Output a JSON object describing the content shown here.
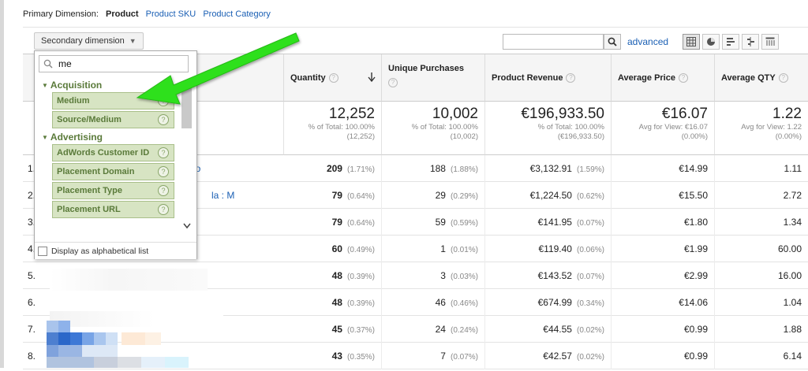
{
  "primary": {
    "label": "Primary Dimension:",
    "active": "Product",
    "links": [
      "Product SKU",
      "Product Category"
    ]
  },
  "toolbar": {
    "secondary_dimension": "Secondary dimension",
    "search_value": "",
    "advanced": "advanced",
    "view_icons": [
      "table-view-icon",
      "pie-view-icon",
      "bar-view-icon",
      "comparison-view-icon",
      "pivot-view-icon"
    ]
  },
  "columns": {
    "quantity": "Quantity",
    "unique_purchases": "Unique Purchases",
    "product_revenue": "Product Revenue",
    "average_price": "Average Price",
    "average_qty": "Average QTY",
    "help_glyph": "?"
  },
  "summary": {
    "quantity": {
      "big": "12,252",
      "l1": "% of Total: 100.00%",
      "l2": "(12,252)"
    },
    "unique_purchases": {
      "big": "10,002",
      "l1": "% of Total: 100.00%",
      "l2": "(10,002)"
    },
    "product_revenue": {
      "big": "€196,933.50",
      "l1": "% of Total: 100.00%",
      "l2": "(€196,933.50)"
    },
    "average_price": {
      "big": "€16.07",
      "l1": "Avg for View: €16.07",
      "l2": "(0.00%)"
    },
    "average_qty": {
      "big": "1.22",
      "l1": "Avg for View: 1.22",
      "l2": "(0.00%)"
    }
  },
  "rows": [
    {
      "idx": "1.",
      "product": "do",
      "qty": "209",
      "qty_pct": "(1.71%)",
      "up": "188",
      "up_pct": "(1.88%)",
      "rev": "€3,132.91",
      "rev_pct": "(1.59%)",
      "price": "€14.99",
      "avgqty": "1.11"
    },
    {
      "idx": "2.",
      "product": "la : M",
      "qty": "79",
      "qty_pct": "(0.64%)",
      "up": "29",
      "up_pct": "(0.29%)",
      "rev": "€1,224.50",
      "rev_pct": "(0.62%)",
      "price": "€15.50",
      "avgqty": "2.72"
    },
    {
      "idx": "3.",
      "product": "",
      "qty": "79",
      "qty_pct": "(0.64%)",
      "up": "59",
      "up_pct": "(0.59%)",
      "rev": "€141.95",
      "rev_pct": "(0.07%)",
      "price": "€1.80",
      "avgqty": "1.34"
    },
    {
      "idx": "4.",
      "product": "",
      "qty": "60",
      "qty_pct": "(0.49%)",
      "up": "1",
      "up_pct": "(0.01%)",
      "rev": "€119.40",
      "rev_pct": "(0.06%)",
      "price": "€1.99",
      "avgqty": "60.00"
    },
    {
      "idx": "5.",
      "product": "",
      "qty": "48",
      "qty_pct": "(0.39%)",
      "up": "3",
      "up_pct": "(0.03%)",
      "rev": "€143.52",
      "rev_pct": "(0.07%)",
      "price": "€2.99",
      "avgqty": "16.00"
    },
    {
      "idx": "6.",
      "product": "",
      "qty": "48",
      "qty_pct": "(0.39%)",
      "up": "46",
      "up_pct": "(0.46%)",
      "rev": "€674.99",
      "rev_pct": "(0.34%)",
      "price": "€14.06",
      "avgqty": "1.04"
    },
    {
      "idx": "7.",
      "product": "",
      "qty": "45",
      "qty_pct": "(0.37%)",
      "up": "24",
      "up_pct": "(0.24%)",
      "rev": "€44.55",
      "rev_pct": "(0.02%)",
      "price": "€0.99",
      "avgqty": "1.88"
    },
    {
      "idx": "8.",
      "product": "",
      "qty": "43",
      "qty_pct": "(0.35%)",
      "up": "7",
      "up_pct": "(0.07%)",
      "rev": "€42.57",
      "rev_pct": "(0.02%)",
      "price": "€0.99",
      "avgqty": "6.14"
    }
  ],
  "dropdown": {
    "search_value": "me",
    "categories": [
      {
        "name": "Acquisition",
        "items": [
          "Medium",
          "Source/Medium"
        ]
      },
      {
        "name": "Advertising",
        "items": [
          "AdWords Customer ID",
          "Placement Domain",
          "Placement Type",
          "Placement URL"
        ]
      }
    ],
    "alphabetical_label": "Display as alphabetical list"
  },
  "colors": {
    "link": "#1a5fb4",
    "category_text": "#5a7a3a",
    "option_bg": "#d7e4c3",
    "arrow": "#2fe01d"
  }
}
